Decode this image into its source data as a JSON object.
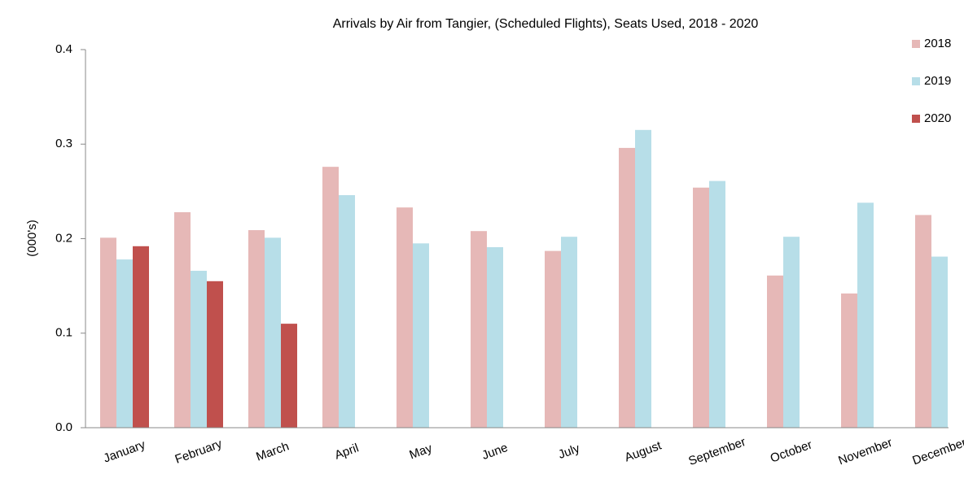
{
  "chart_data": {
    "type": "bar",
    "title": "Arrivals by Air  from Tangier, (Scheduled Flights), Seats Used, 2018 - 2020",
    "y_label": "(000's)",
    "categories": [
      "January",
      "February",
      "March",
      "April",
      "May",
      "June",
      "July",
      "August",
      "September",
      "October",
      "November",
      "December"
    ],
    "series": [
      {
        "name": "2018",
        "color": "#e6b8b7",
        "values": [
          0.201,
          0.228,
          0.209,
          0.276,
          0.233,
          0.208,
          0.187,
          0.296,
          0.254,
          0.161,
          0.142,
          0.225
        ]
      },
      {
        "name": "2019",
        "color": "#b7dee8",
        "values": [
          0.178,
          0.166,
          0.201,
          0.246,
          0.195,
          0.191,
          0.202,
          0.315,
          0.261,
          0.202,
          0.238,
          0.181
        ]
      },
      {
        "name": "2020",
        "color": "#c0504d",
        "values": [
          0.192,
          0.155,
          0.11,
          null,
          null,
          null,
          null,
          null,
          null,
          null,
          null,
          null
        ]
      }
    ],
    "ylim": [
      0,
      0.4
    ],
    "yticks": [
      {
        "value": 0,
        "label": "0.0"
      },
      0.1,
      0.2,
      0.3,
      0.4
    ],
    "legend": "top-right"
  }
}
